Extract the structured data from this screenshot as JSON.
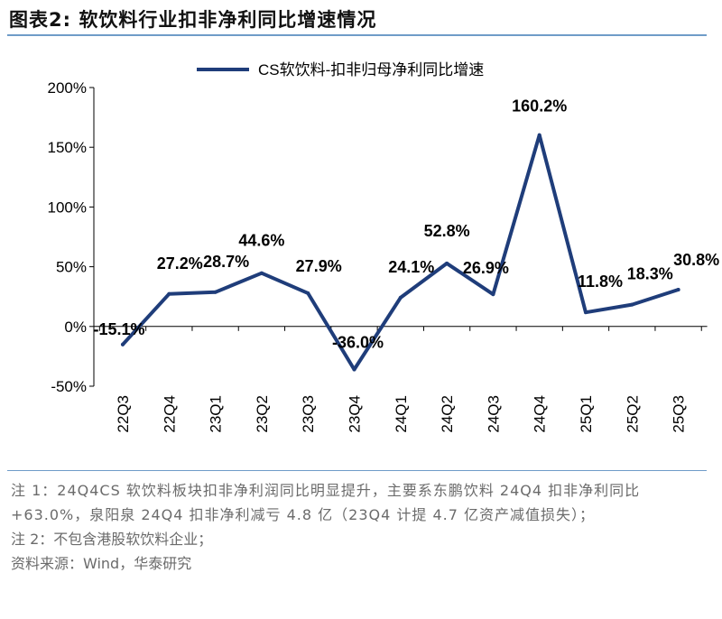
{
  "figure": {
    "title": "图表2:   软饮料行业扣非净利同比增速情况"
  },
  "chart_data": {
    "type": "line",
    "title": "",
    "xlabel": "",
    "ylabel": "",
    "ylim": [
      -50,
      200
    ],
    "yticks": [
      -50,
      0,
      50,
      100,
      150,
      200
    ],
    "ytick_labels": [
      "-50%",
      "0%",
      "50%",
      "100%",
      "150%",
      "200%"
    ],
    "legend": "top-center",
    "grid": false,
    "color": "#1f3d7a",
    "categories": [
      "22Q3",
      "22Q4",
      "23Q1",
      "23Q2",
      "23Q3",
      "23Q4",
      "24Q1",
      "24Q2",
      "24Q3",
      "24Q4",
      "25Q1",
      "25Q2",
      "25Q3"
    ],
    "series": [
      {
        "name": "CS软饮料-扣非归母净利同比增速",
        "values": [
          -15.1,
          27.2,
          28.7,
          44.6,
          27.9,
          -36.0,
          24.1,
          52.8,
          26.9,
          160.2,
          11.8,
          18.3,
          30.8
        ],
        "labels": [
          "-15.1%",
          "27.2%",
          "28.7%",
          "44.6%",
          "27.9%",
          "-36.0%",
          "24.1%",
          "52.8%",
          "26.9%",
          "160.2%",
          "11.8%",
          "18.3%",
          "30.8%"
        ]
      }
    ]
  },
  "notes": {
    "note1": "注 1：24Q4CS 软饮料板块扣非净利润同比明显提升，主要系东鹏饮料 24Q4 扣非净利同比+63.0%，泉阳泉 24Q4 扣非净利减亏 4.8 亿（23Q4 计提 4.7 亿资产减值损失）；",
    "note2": "注 2：不包含港股软饮料企业；",
    "source": "资料来源：Wind，华泰研究"
  }
}
